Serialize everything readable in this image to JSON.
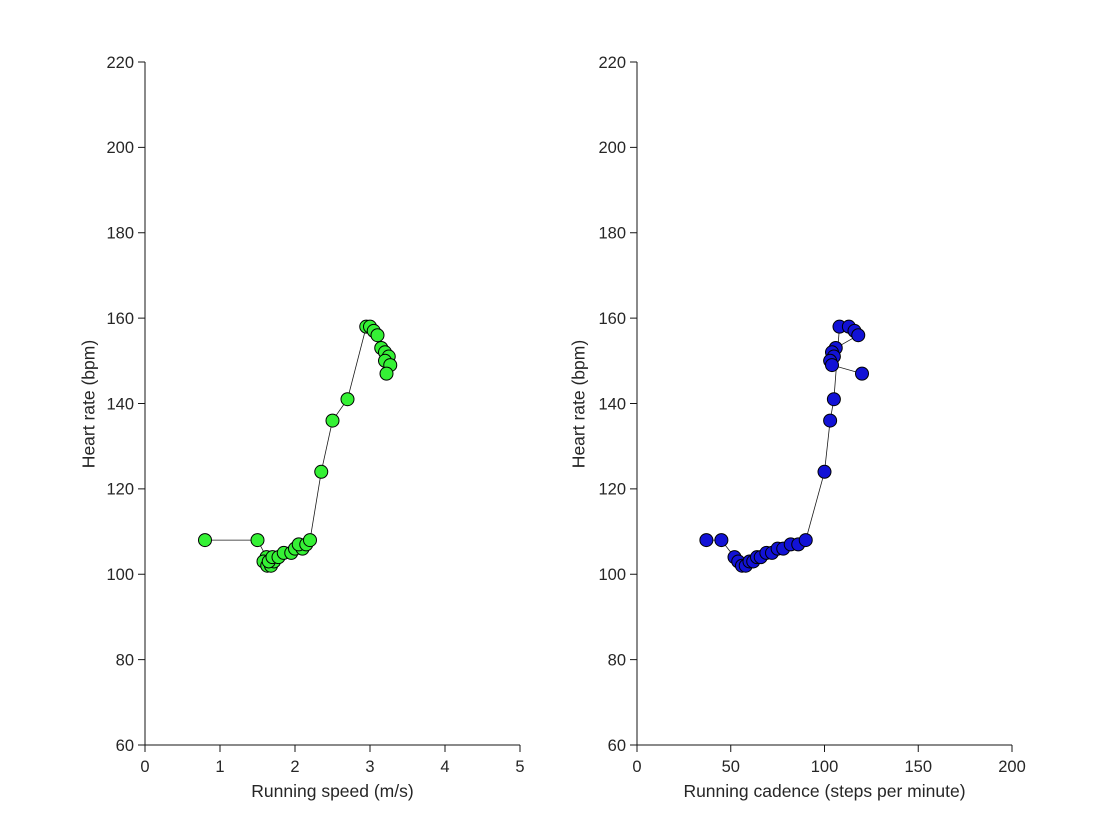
{
  "figure": {
    "background": "#ffffff",
    "text_color": "#262626",
    "axis_color": "#151515"
  },
  "chart_data": [
    {
      "type": "scatter",
      "title": "",
      "xlabel": "Running speed (m/s)",
      "ylabel": "Heart rate (bpm)",
      "xlim": [
        0,
        5
      ],
      "ylim": [
        60,
        220
      ],
      "xticks": [
        0,
        1,
        2,
        3,
        4,
        5
      ],
      "yticks": [
        60,
        80,
        100,
        120,
        140,
        160,
        180,
        200,
        220
      ],
      "grid": false,
      "legend": null,
      "line_color": "#1a1a1a",
      "marker_fill": "#35f135",
      "marker_edge": "#000000",
      "x": [
        0.8,
        1.5,
        1.62,
        1.58,
        1.63,
        1.68,
        1.72,
        1.65,
        1.7,
        1.78,
        1.85,
        1.95,
        2.0,
        2.1,
        2.05,
        2.15,
        2.2,
        2.35,
        2.5,
        2.7,
        2.95,
        3.0,
        3.05,
        3.1,
        3.15,
        3.2,
        3.25,
        3.2,
        3.27,
        3.22
      ],
      "y": [
        108,
        108,
        104,
        103,
        102,
        102,
        103,
        103,
        104,
        104,
        105,
        105,
        106,
        106,
        107,
        107,
        108,
        124,
        136,
        141,
        158,
        158,
        157,
        156,
        153,
        152,
        151,
        150,
        149,
        147
      ]
    },
    {
      "type": "scatter",
      "title": "",
      "xlabel": "Running cadence (steps per minute)",
      "ylabel": "Heart rate (bpm)",
      "xlim": [
        0,
        200
      ],
      "ylim": [
        60,
        220
      ],
      "xticks": [
        0,
        50,
        100,
        150,
        200
      ],
      "yticks": [
        60,
        80,
        100,
        120,
        140,
        160,
        180,
        200,
        220
      ],
      "grid": false,
      "legend": null,
      "line_color": "#1a1a1a",
      "marker_fill": "#1212d6",
      "marker_edge": "#000000",
      "x": [
        37,
        45,
        52,
        54,
        56,
        58,
        60,
        62,
        64,
        66,
        69,
        72,
        75,
        78,
        82,
        86,
        90,
        100,
        103,
        105,
        108,
        113,
        116,
        118,
        106,
        104,
        105,
        103,
        104,
        120
      ],
      "y": [
        108,
        108,
        104,
        103,
        102,
        102,
        103,
        103,
        104,
        104,
        105,
        105,
        106,
        106,
        107,
        107,
        108,
        124,
        136,
        141,
        158,
        158,
        157,
        156,
        153,
        152,
        151,
        150,
        149,
        147
      ]
    }
  ]
}
